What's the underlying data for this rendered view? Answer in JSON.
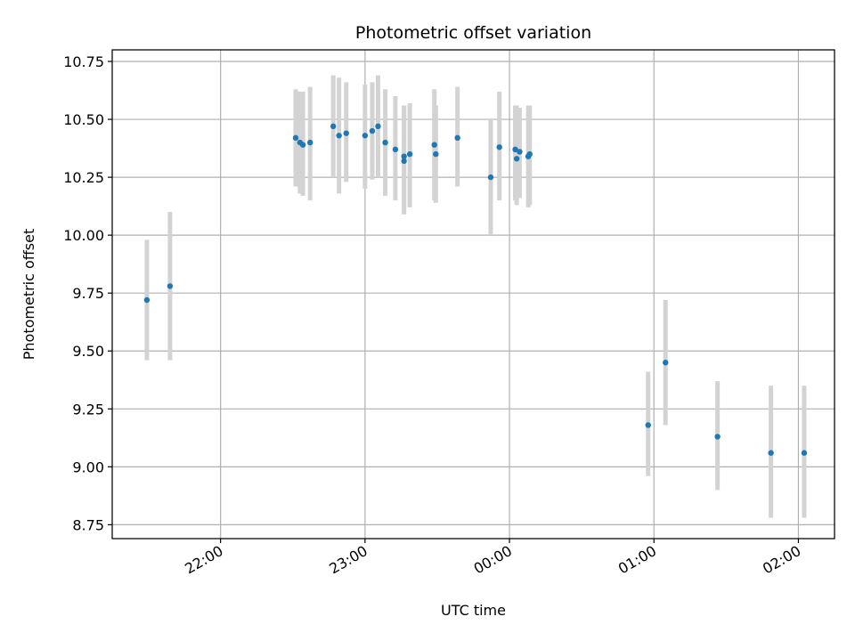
{
  "chart_data": {
    "type": "scatter",
    "title": "Photometric offset variation",
    "xlabel": "UTC time",
    "ylabel": "Photometric offset",
    "x_unit": "hours (UTC, continuing past midnight)",
    "xlim": [
      21.25,
      26.25
    ],
    "ylim": [
      8.69,
      10.8
    ],
    "x_ticks": [
      {
        "value": 22,
        "label": "22:00"
      },
      {
        "value": 23,
        "label": "23:00"
      },
      {
        "value": 24,
        "label": "00:00"
      },
      {
        "value": 25,
        "label": "01:00"
      },
      {
        "value": 26,
        "label": "02:00"
      }
    ],
    "y_ticks": [
      {
        "value": 8.75,
        "label": "8.75"
      },
      {
        "value": 9.0,
        "label": "9.00"
      },
      {
        "value": 9.25,
        "label": "9.25"
      },
      {
        "value": 9.5,
        "label": "9.50"
      },
      {
        "value": 9.75,
        "label": "9.75"
      },
      {
        "value": 10.0,
        "label": "10.00"
      },
      {
        "value": 10.25,
        "label": "10.25"
      },
      {
        "value": 10.5,
        "label": "10.50"
      },
      {
        "value": 10.75,
        "label": "10.75"
      }
    ],
    "grid": true,
    "marker_color": "#1f77b4",
    "errorbar_color": "#d3d3d3",
    "points": [
      {
        "x": 21.49,
        "y": 9.72,
        "ylo": 9.46,
        "yhi": 9.98
      },
      {
        "x": 21.65,
        "y": 9.78,
        "ylo": 9.46,
        "yhi": 10.1
      },
      {
        "x": 22.52,
        "y": 10.42,
        "ylo": 10.21,
        "yhi": 10.63
      },
      {
        "x": 22.55,
        "y": 10.4,
        "ylo": 10.18,
        "yhi": 10.62
      },
      {
        "x": 22.57,
        "y": 10.39,
        "ylo": 10.17,
        "yhi": 10.62
      },
      {
        "x": 22.62,
        "y": 10.4,
        "ylo": 10.15,
        "yhi": 10.64
      },
      {
        "x": 22.78,
        "y": 10.47,
        "ylo": 10.25,
        "yhi": 10.69
      },
      {
        "x": 22.82,
        "y": 10.43,
        "ylo": 10.18,
        "yhi": 10.68
      },
      {
        "x": 22.87,
        "y": 10.44,
        "ylo": 10.23,
        "yhi": 10.66
      },
      {
        "x": 23.0,
        "y": 10.43,
        "ylo": 10.2,
        "yhi": 10.65
      },
      {
        "x": 23.05,
        "y": 10.45,
        "ylo": 10.24,
        "yhi": 10.66
      },
      {
        "x": 23.09,
        "y": 10.47,
        "ylo": 10.25,
        "yhi": 10.69
      },
      {
        "x": 23.14,
        "y": 10.4,
        "ylo": 10.17,
        "yhi": 10.63
      },
      {
        "x": 23.21,
        "y": 10.37,
        "ylo": 10.15,
        "yhi": 10.6
      },
      {
        "x": 23.27,
        "y": 10.32,
        "ylo": 10.09,
        "yhi": 10.56
      },
      {
        "x": 23.27,
        "y": 10.34,
        "ylo": 10.11,
        "yhi": 10.56
      },
      {
        "x": 23.31,
        "y": 10.35,
        "ylo": 10.12,
        "yhi": 10.57
      },
      {
        "x": 23.48,
        "y": 10.39,
        "ylo": 10.15,
        "yhi": 10.63
      },
      {
        "x": 23.49,
        "y": 10.35,
        "ylo": 10.14,
        "yhi": 10.56
      },
      {
        "x": 23.64,
        "y": 10.42,
        "ylo": 10.21,
        "yhi": 10.64
      },
      {
        "x": 23.87,
        "y": 10.25,
        "ylo": 10.0,
        "yhi": 10.5
      },
      {
        "x": 23.93,
        "y": 10.38,
        "ylo": 10.15,
        "yhi": 10.62
      },
      {
        "x": 24.04,
        "y": 10.37,
        "ylo": 10.15,
        "yhi": 10.56
      },
      {
        "x": 24.05,
        "y": 10.33,
        "ylo": 10.13,
        "yhi": 10.56
      },
      {
        "x": 24.07,
        "y": 10.36,
        "ylo": 10.16,
        "yhi": 10.55
      },
      {
        "x": 24.13,
        "y": 10.34,
        "ylo": 10.12,
        "yhi": 10.56
      },
      {
        "x": 24.14,
        "y": 10.35,
        "ylo": 10.13,
        "yhi": 10.56
      },
      {
        "x": 24.96,
        "y": 9.18,
        "ylo": 8.96,
        "yhi": 9.41
      },
      {
        "x": 25.08,
        "y": 9.45,
        "ylo": 9.18,
        "yhi": 9.72
      },
      {
        "x": 25.44,
        "y": 9.13,
        "ylo": 8.9,
        "yhi": 9.37
      },
      {
        "x": 25.81,
        "y": 9.06,
        "ylo": 8.78,
        "yhi": 9.35
      },
      {
        "x": 26.04,
        "y": 9.06,
        "ylo": 8.78,
        "yhi": 9.35
      }
    ]
  }
}
